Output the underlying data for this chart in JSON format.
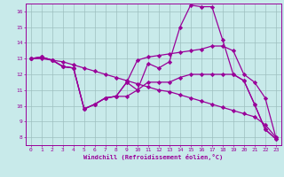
{
  "background_color": "#c8eaea",
  "grid_color": "#9dbfbf",
  "line_color": "#990099",
  "marker": "D",
  "markersize": 2.2,
  "linewidth": 0.9,
  "xlim": [
    -0.5,
    23.5
  ],
  "ylim": [
    7.5,
    16.5
  ],
  "xticks": [
    0,
    1,
    2,
    3,
    4,
    5,
    6,
    7,
    8,
    9,
    10,
    11,
    12,
    13,
    14,
    15,
    16,
    17,
    18,
    19,
    20,
    21,
    22,
    23
  ],
  "yticks": [
    8,
    9,
    10,
    11,
    12,
    13,
    14,
    15,
    16
  ],
  "xlabel": "Windchill (Refroidissement éolien,°C)",
  "series": [
    [
      13.0,
      13.1,
      12.9,
      12.5,
      12.4,
      9.8,
      10.1,
      10.5,
      10.6,
      10.6,
      11.0,
      12.7,
      12.4,
      12.8,
      15.0,
      16.4,
      16.3,
      16.3,
      14.2,
      12.0,
      11.6,
      10.1,
      8.5,
      7.9
    ],
    [
      13.0,
      13.0,
      12.9,
      12.8,
      12.6,
      12.4,
      12.2,
      12.0,
      11.8,
      11.6,
      11.4,
      11.2,
      11.0,
      10.9,
      10.7,
      10.5,
      10.3,
      10.1,
      9.9,
      9.7,
      9.5,
      9.3,
      8.8,
      8.0
    ],
    [
      13.0,
      13.1,
      12.9,
      12.5,
      12.4,
      9.8,
      10.1,
      10.5,
      10.6,
      11.5,
      12.9,
      13.1,
      13.2,
      13.3,
      13.4,
      13.5,
      13.6,
      13.8,
      13.8,
      13.5,
      12.0,
      11.5,
      10.5,
      8.0
    ],
    [
      13.0,
      13.1,
      12.9,
      12.5,
      12.4,
      9.8,
      10.1,
      10.5,
      10.6,
      11.5,
      11.0,
      11.5,
      11.5,
      11.5,
      11.8,
      12.0,
      12.0,
      12.0,
      12.0,
      12.0,
      11.6,
      10.1,
      8.5,
      7.9
    ]
  ]
}
